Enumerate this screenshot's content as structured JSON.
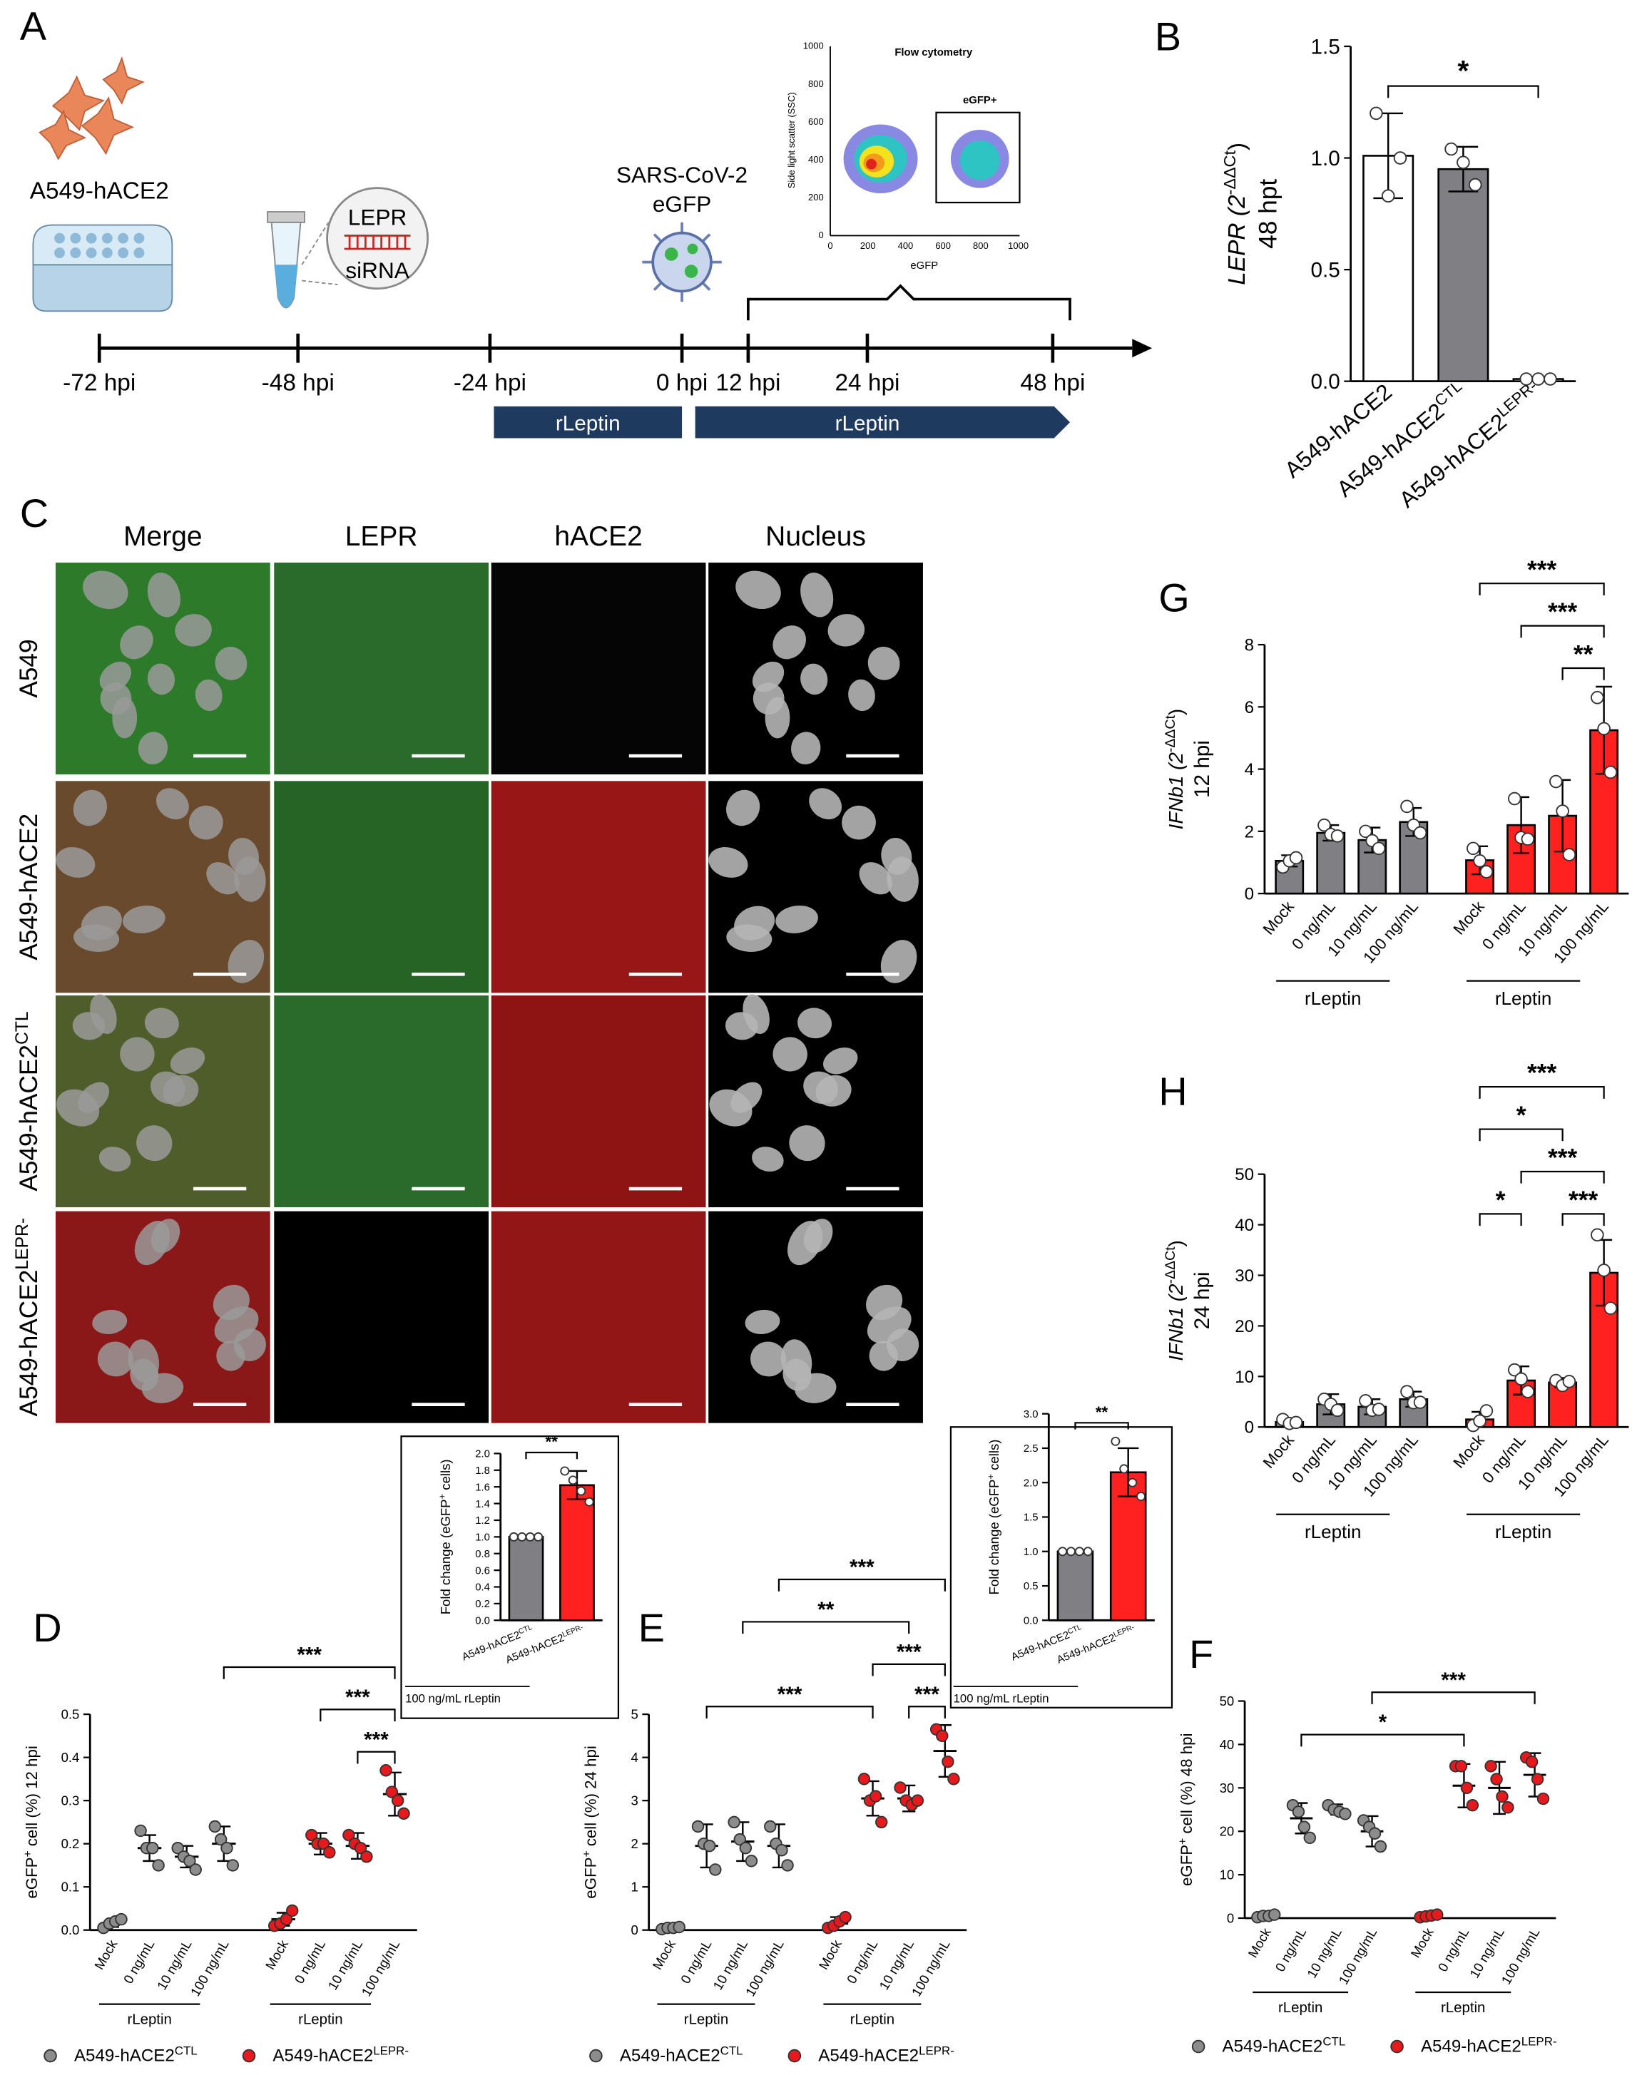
{
  "panel_labels": [
    "A",
    "B",
    "C",
    "D",
    "E",
    "F",
    "G",
    "H"
  ],
  "timeline": {
    "cell_line": "A549-hACE2",
    "sirna_target": "LEPR",
    "sirna": "siRNA",
    "virus": "SARS-CoV-2",
    "virus_reporter": "eGFP",
    "times": [
      "-72 hpi",
      "-48 hpi",
      "-24 hpi",
      "0 hpi",
      "12 hpi",
      "24 hpi",
      "48 hpi"
    ],
    "treatments": [
      "rLeptin",
      "rLeptin"
    ]
  },
  "flow": {
    "title": "Flow cytometry",
    "gate": "eGFP+",
    "x_label": "eGFP",
    "y_label": "Side light scatter (SSC)",
    "ticks": [
      0,
      200,
      400,
      600,
      800,
      1000
    ]
  },
  "microscopy": {
    "columns": [
      "Merge",
      "LEPR",
      "hACE2",
      "Nucleus"
    ],
    "rows": [
      {
        "base": "A549"
      },
      {
        "base": "A549-hACE2"
      },
      {
        "base": "A549-hACE2",
        "sup": "CTL"
      },
      {
        "base": "A549-hACE2",
        "sup": "LEPR-"
      }
    ]
  },
  "chart_data": [
    {
      "type": "bar",
      "y_label": {
        "pre": "LEPR (2",
        "sup": "-ΔΔCt",
        "post": ")",
        "line2": "48 hpt"
      },
      "categories": [
        "A549-hACE2",
        "A549-hACE2",
        "A549-hACE2"
      ],
      "category_sup": [
        null,
        "CTL",
        "LEPR-"
      ],
      "series": [
        {
          "colors": [
            "#ffffff",
            "#7f7f84",
            "#ffffff"
          ],
          "values": [
            1.01,
            0.95,
            0.01
          ],
          "errors": [
            0.19,
            0.1,
            0.01
          ],
          "points": [
            [
              1.2,
              0.83,
              1.0
            ],
            [
              1.04,
              0.98,
              0.88
            ],
            [
              0.01,
              0.01,
              0.01
            ]
          ]
        }
      ],
      "ylim": [
        0,
        1.5
      ],
      "yticks": [
        {
          "value": 0,
          "label": "0.0"
        },
        {
          "value": 0.5,
          "label": "0.5"
        },
        {
          "value": 1,
          "label": "1.0"
        },
        {
          "value": 1.5,
          "label": "1.5"
        }
      ],
      "significance": [
        {
          "label": "*",
          "from": [
            0,
            0
          ],
          "to": [
            0,
            2
          ]
        }
      ]
    },
    {
      "type": "bar",
      "y_label": {
        "pre": "IFNb1 (2",
        "sup": "-ΔΔCt",
        "post": ")",
        "line2": "12 hpi"
      },
      "categories": [
        "Mock",
        "0 ng/mL",
        "10 ng/mL",
        "100 ng/mL"
      ],
      "group_label": "rLeptin",
      "series": [
        {
          "color": "#7f7f84",
          "values": [
            1.05,
            1.95,
            1.72,
            2.3
          ],
          "errors": [
            0.18,
            0.25,
            0.4,
            0.45
          ],
          "points": [
            [
              0.85,
              1.05,
              1.15
            ],
            [
              2.2,
              1.9,
              1.85
            ],
            [
              2.0,
              1.7,
              1.45
            ],
            [
              2.8,
              2.2,
              1.95
            ]
          ]
        },
        {
          "color": "#ff2020",
          "values": [
            1.07,
            2.2,
            2.5,
            5.25
          ],
          "errors": [
            0.45,
            0.9,
            1.15,
            1.4
          ],
          "points": [
            [
              1.45,
              1.05,
              0.7
            ],
            [
              3.05,
              1.8,
              1.75
            ],
            [
              3.6,
              2.65,
              1.25
            ],
            [
              6.3,
              5.3,
              3.9
            ]
          ]
        }
      ],
      "ylim": [
        0,
        8
      ],
      "yticks": [
        0,
        2,
        4,
        6,
        8
      ],
      "significance": [
        {
          "label": "**",
          "from": [
            1,
            2
          ],
          "to": [
            1,
            3
          ]
        },
        {
          "label": "***",
          "from": [
            1,
            1
          ],
          "to": [
            1,
            3
          ]
        },
        {
          "label": "***",
          "from": [
            1,
            0
          ],
          "to": [
            1,
            3
          ]
        }
      ]
    },
    {
      "type": "bar",
      "y_label": {
        "pre": "IFNb1 (2",
        "sup": "-ΔΔCt",
        "post": ")",
        "line2": "24 hpi"
      },
      "categories": [
        "Mock",
        "0 ng/mL",
        "10 ng/mL",
        "100 ng/mL"
      ],
      "group_label": "rLeptin",
      "series": [
        {
          "color": "#7f7f84",
          "values": [
            1,
            4.5,
            4,
            5.5
          ],
          "errors": [
            0.6,
            2,
            1.5,
            1.5
          ],
          "points": [
            [
              1.5,
              0.7,
              0.9
            ],
            [
              5.5,
              4.5,
              3.3
            ],
            [
              5.2,
              3.3,
              3.5
            ],
            [
              7,
              4.8,
              4.9
            ]
          ]
        },
        {
          "color": "#ff2020",
          "values": [
            1.5,
            9.2,
            8.8,
            30.5
          ],
          "errors": [
            1.5,
            2.8,
            0.9,
            6.5
          ],
          "points": [
            [
              0.3,
              1.2,
              3.2
            ],
            [
              11.3,
              9.5,
              7
            ],
            [
              9.2,
              8.2,
              9
            ],
            [
              38,
              31,
              23.5
            ]
          ]
        }
      ],
      "ylim": [
        0,
        50
      ],
      "yticks": [
        0,
        10,
        20,
        30,
        40,
        50
      ],
      "significance": [
        {
          "label": "***",
          "from": [
            1,
            2
          ],
          "to": [
            1,
            3
          ]
        },
        {
          "label": "*",
          "from": [
            1,
            0
          ],
          "to": [
            1,
            1
          ]
        },
        {
          "label": "***",
          "from": [
            1,
            1
          ],
          "to": [
            1,
            3
          ]
        },
        {
          "label": "*",
          "from": [
            1,
            0
          ],
          "to": [
            1,
            2
          ]
        },
        {
          "label": "***",
          "from": [
            1,
            0
          ],
          "to": [
            1,
            3
          ]
        }
      ]
    },
    {
      "type": "scatter",
      "y_label": {
        "pre": "eGFP",
        "sup": "+",
        "post": " cell (%) 12 hpi"
      },
      "categories": [
        "Mock",
        "0 ng/mL",
        "10 ng/mL",
        "100 ng/mL"
      ],
      "group_label": "rLeptin",
      "series": [
        {
          "name": "A549-hACE2",
          "name_sup": "CTL",
          "color": "#8c8c8c",
          "values": [
            0.015,
            0.19,
            0.17,
            0.2
          ],
          "errors": [
            0.008,
            0.03,
            0.025,
            0.04
          ],
          "points": [
            [
              0.005,
              0.015,
              0.02,
              0.025
            ],
            [
              0.23,
              0.19,
              0.19,
              0.15
            ],
            [
              0.19,
              0.17,
              0.16,
              0.14
            ],
            [
              0.24,
              0.21,
              0.19,
              0.15
            ]
          ]
        },
        {
          "name": "A549-hACE2",
          "name_sup": "LEPR-",
          "color": "#e8191c",
          "values": [
            0.025,
            0.2,
            0.195,
            0.315
          ],
          "errors": [
            0.015,
            0.025,
            0.03,
            0.05
          ],
          "points": [
            [
              0.01,
              0.015,
              0.025,
              0.045
            ],
            [
              0.22,
              0.2,
              0.2,
              0.18
            ],
            [
              0.22,
              0.2,
              0.19,
              0.17
            ],
            [
              0.37,
              0.32,
              0.3,
              0.27
            ]
          ]
        }
      ],
      "ylim": [
        0,
        0.5
      ],
      "yticks": [
        {
          "value": 0,
          "label": "0.0"
        },
        0.1,
        0.2,
        0.3,
        0.4,
        0.5
      ],
      "significance": [
        {
          "label": "***",
          "from": [
            1,
            2
          ],
          "to": [
            1,
            3
          ]
        },
        {
          "label": "***",
          "from": [
            1,
            1
          ],
          "to": [
            1,
            3
          ]
        },
        {
          "label": "***",
          "from": [
            0,
            3
          ],
          "to": [
            1,
            3
          ]
        }
      ]
    },
    {
      "type": "scatter",
      "y_label": {
        "pre": "eGFP",
        "sup": "+",
        "post": " cell (%) 24 hpi"
      },
      "categories": [
        "Mock",
        "0 ng/mL",
        "10 ng/mL",
        "100 ng/mL"
      ],
      "group_label": "rLeptin",
      "series": [
        {
          "name": "A549-hACE2",
          "name_sup": "CTL",
          "color": "#8c8c8c",
          "values": [
            0.05,
            1.95,
            2.05,
            1.95
          ],
          "errors": [
            0.05,
            0.5,
            0.45,
            0.5
          ],
          "points": [
            [
              0.02,
              0.05,
              0.05,
              0.07
            ],
            [
              2.4,
              2.0,
              1.95,
              1.4
            ],
            [
              2.5,
              2.1,
              1.9,
              1.6
            ],
            [
              2.4,
              2.0,
              1.85,
              1.5
            ]
          ]
        },
        {
          "name": "A549-hACE2",
          "name_sup": "LEPR-",
          "color": "#e8191c",
          "values": [
            0.15,
            3.05,
            3.05,
            4.15
          ],
          "errors": [
            0.15,
            0.4,
            0.3,
            0.6
          ],
          "points": [
            [
              0.05,
              0.1,
              0.2,
              0.3
            ],
            [
              3.5,
              3.0,
              3.1,
              2.5
            ],
            [
              3.3,
              3.0,
              2.9,
              3.0
            ],
            [
              4.65,
              4.5,
              3.9,
              3.5
            ]
          ]
        }
      ],
      "ylim": [
        0,
        5
      ],
      "yticks": [
        0,
        1,
        2,
        3,
        4,
        5
      ],
      "significance": [
        {
          "label": "***",
          "from": [
            1,
            2
          ],
          "to": [
            1,
            3
          ]
        },
        {
          "label": "***",
          "from": [
            0,
            1
          ],
          "to": [
            1,
            1
          ]
        },
        {
          "label": "***",
          "from": [
            1,
            1
          ],
          "to": [
            1,
            3
          ]
        },
        {
          "label": "**",
          "from": [
            0,
            2
          ],
          "to": [
            1,
            2
          ]
        },
        {
          "label": "***",
          "from": [
            0,
            3
          ],
          "to": [
            1,
            3
          ]
        }
      ]
    },
    {
      "type": "scatter",
      "y_label": {
        "pre": "eGFP",
        "sup": "+",
        "post": " cell (%) 48 hpi"
      },
      "categories": [
        "Mock",
        "0 ng/mL",
        "10 ng/mL",
        "100 ng/mL"
      ],
      "group_label": "rLeptin",
      "series": [
        {
          "name": "A549-hACE2",
          "name_sup": "CTL",
          "color": "#8c8c8c",
          "values": [
            0.5,
            23,
            25,
            20
          ],
          "errors": [
            0.5,
            3.5,
            1.2,
            3.5
          ],
          "points": [
            [
              0.2,
              0.5,
              0.5,
              0.8
            ],
            [
              26,
              24.5,
              21,
              18.5
            ],
            [
              26,
              25,
              24.5,
              24
            ],
            [
              22.5,
              21,
              19.5,
              16.5
            ]
          ]
        },
        {
          "name": "A549-hACE2",
          "name_sup": "LEPR-",
          "color": "#e8191c",
          "values": [
            0.5,
            30.5,
            30,
            33
          ],
          "errors": [
            0.5,
            5,
            6,
            5
          ],
          "points": [
            [
              0.2,
              0.4,
              0.6,
              0.8
            ],
            [
              35,
              35,
              30,
              26
            ],
            [
              35,
              32,
              28,
              25.5
            ],
            [
              37,
              36,
              32,
              27.5
            ]
          ]
        }
      ],
      "ylim": [
        0,
        50
      ],
      "yticks": [
        0,
        10,
        20,
        30,
        40,
        50
      ],
      "significance": [
        {
          "label": "*",
          "from": [
            0,
            1
          ],
          "to": [
            1,
            1
          ]
        },
        {
          "label": "***",
          "from": [
            0,
            3
          ],
          "to": [
            1,
            3
          ]
        }
      ]
    },
    {
      "type": "bar",
      "y_label": {
        "pre": "Fold change (eGFP",
        "sup": "+",
        "post": " cells)"
      },
      "categories": [
        "A549-hACE2",
        "A549-hACE2"
      ],
      "category_sup": [
        "CTL",
        "LEPR-"
      ],
      "caption": "100 ng/mL rLeptin",
      "series": [
        {
          "colors": [
            "#7f7f84",
            "#ff2020"
          ],
          "values": [
            1.0,
            1.62
          ],
          "errors": [
            0.02,
            0.17
          ],
          "points": [
            [
              1,
              1,
              1,
              1
            ],
            [
              1.79,
              1.68,
              1.55,
              1.42
            ]
          ]
        }
      ],
      "ylim": [
        0,
        2
      ],
      "yticks": [
        {
          "value": 0,
          "label": "0.0"
        },
        0.2,
        0.4,
        0.6,
        0.8,
        {
          "value": 1,
          "label": "1.0"
        },
        1.2,
        1.4,
        1.6,
        1.8,
        {
          "value": 2,
          "label": "2.0"
        }
      ],
      "significance": [
        {
          "label": "**",
          "from": [
            0,
            0
          ],
          "to": [
            0,
            1
          ]
        }
      ]
    },
    {
      "type": "bar",
      "y_label": {
        "pre": "Fold change (eGFP",
        "sup": "+",
        "post": " cells)"
      },
      "categories": [
        "A549-hACE2",
        "A549-hACE2"
      ],
      "category_sup": [
        "CTL",
        "LEPR-"
      ],
      "caption": "100 ng/mL rLeptin",
      "series": [
        {
          "colors": [
            "#7f7f84",
            "#ff2020"
          ],
          "values": [
            1.0,
            2.15
          ],
          "errors": [
            0.02,
            0.35
          ],
          "points": [
            [
              1,
              1,
              1,
              1
            ],
            [
              2.6,
              2.2,
              2.0,
              1.8
            ]
          ]
        }
      ],
      "ylim": [
        0,
        3
      ],
      "yticks": [
        {
          "value": 0,
          "label": "0.0"
        },
        0.5,
        {
          "value": 1,
          "label": "1.0"
        },
        1.5,
        {
          "value": 2,
          "label": "2.0"
        },
        2.5,
        {
          "value": 3,
          "label": "3.0"
        }
      ],
      "significance": [
        {
          "label": "**",
          "from": [
            0,
            0
          ],
          "to": [
            0,
            1
          ]
        }
      ]
    }
  ]
}
